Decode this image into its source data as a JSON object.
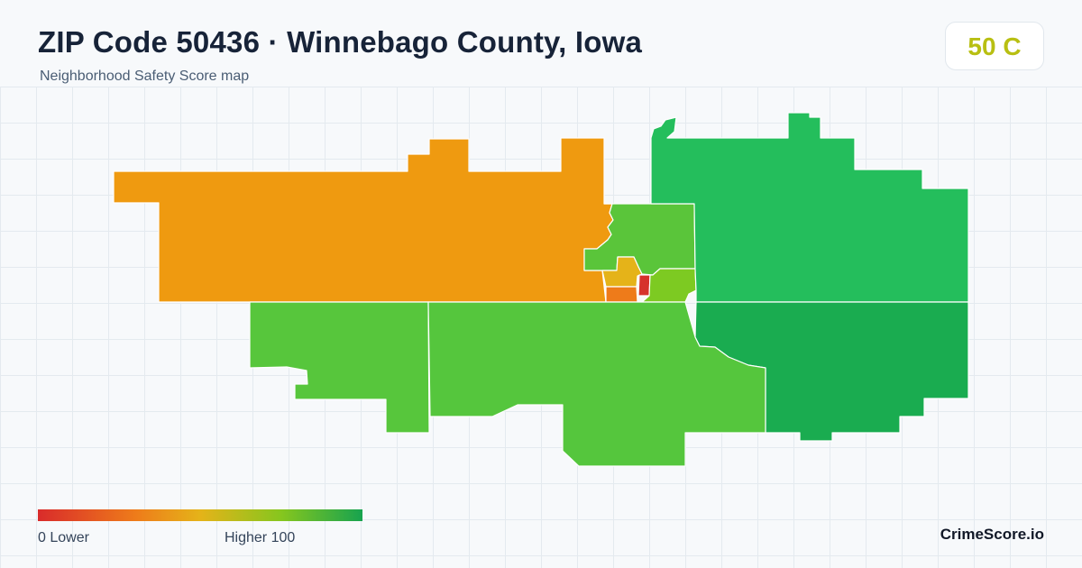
{
  "header": {
    "title": "ZIP Code 50436 · Winnebago County, Iowa",
    "subtitle": "Neighborhood Safety Score map"
  },
  "score": {
    "value": "50",
    "grade": "C",
    "color": "#b8bf12"
  },
  "map": {
    "regions": [
      {
        "name": "west-region",
        "color": "#ef9a10"
      },
      {
        "name": "north-central-region",
        "color": "#5ac53a"
      },
      {
        "name": "downtown-inner-region",
        "color": "#e5b319"
      },
      {
        "name": "downtown-south-region",
        "color": "#ee7b1a"
      },
      {
        "name": "downtown-core-region",
        "color": "#d6322c"
      },
      {
        "name": "downtown-east-region",
        "color": "#7dca22"
      },
      {
        "name": "northeast-region",
        "color": "#24be5c"
      },
      {
        "name": "southeast-region",
        "color": "#1aac50"
      },
      {
        "name": "southwest-region",
        "color": "#57c63c"
      },
      {
        "name": "south-central-region",
        "color": "#55c63d"
      }
    ]
  },
  "legend": {
    "low_label": "0  Lower",
    "high_label": "Higher  100",
    "low_color": "#d92b2b",
    "high_color": "#17a34f"
  },
  "brand": "CrimeScore.io"
}
